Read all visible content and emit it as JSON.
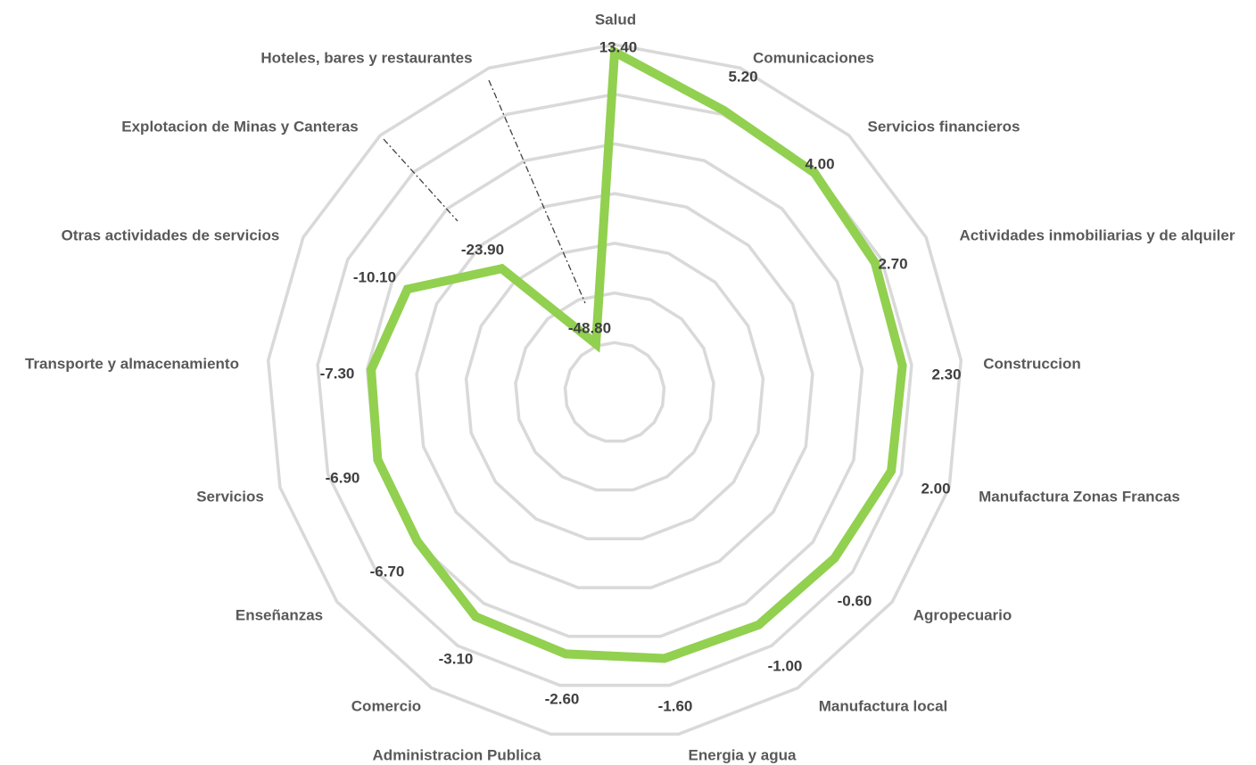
{
  "chart_data": {
    "type": "radar",
    "categories": [
      "Salud",
      "Comunicaciones",
      "Servicios financieros",
      "Actividades inmobiliarias y de alquiler",
      "Construccion",
      "Manufactura Zonas Francas",
      "Agropecuario",
      "Manufactura local",
      "Energia y agua",
      "Administracion Publica",
      "Comercio",
      "Enseñanzas",
      "Servicios",
      "Transporte y almacenamiento",
      "Otras actividades de servicios",
      "Explotacion de Minas y Canteras",
      "Hoteles, bares y restaurantes"
    ],
    "values": [
      13.4,
      5.2,
      4.0,
      2.7,
      2.3,
      2.0,
      -0.6,
      -1.0,
      -1.6,
      -2.6,
      -3.1,
      -6.7,
      -6.9,
      -7.3,
      -10.1,
      -23.9,
      -48.8
    ],
    "value_labels": [
      "13.40",
      "5.20",
      "4.00",
      "2.70",
      "2.30",
      "2.00",
      "-0.60",
      "-1.00",
      "-1.60",
      "-2.60",
      "-3.10",
      "-6.70",
      "-6.90",
      "-7.30",
      "-10.10",
      "-23.90",
      "-48.80"
    ],
    "line_color": "#92d050",
    "grid_color": "#d9d9d9",
    "leader_line_color": "#404040",
    "legend": "none"
  }
}
